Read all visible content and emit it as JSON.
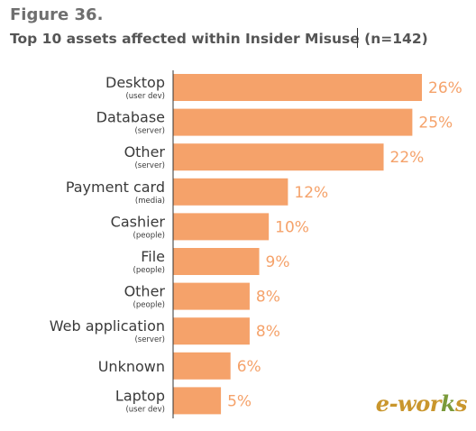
{
  "figure_label": "Figure 36.",
  "chart_data": {
    "type": "bar",
    "orientation": "horizontal",
    "title": "Top 10 assets affected within Insider Misuse (n=142)",
    "categories": [
      "Desktop",
      "Database",
      "Other",
      "Payment card",
      "Cashier",
      "File",
      "Other",
      "Web application",
      "Unknown",
      "Laptop"
    ],
    "subcategories": [
      "(user dev)",
      "(server)",
      "(server)",
      "(media)",
      "(people)",
      "(people)",
      "(people)",
      "(server)",
      "",
      "(user dev)"
    ],
    "values": [
      26,
      25,
      22,
      12,
      10,
      9,
      8,
      8,
      6,
      5
    ],
    "value_labels": [
      "26%",
      "25%",
      "22%",
      "12%",
      "10%",
      "9%",
      "8%",
      "8%",
      "6%",
      "5%"
    ],
    "unit": "%",
    "xlim": [
      0,
      26
    ],
    "grid": false,
    "legend": "none",
    "bar_color": "#f5a26a",
    "axis_color": "#333333"
  },
  "watermark": {
    "prefix": "e-wor",
    "accent": "k",
    "suffix": "s"
  }
}
